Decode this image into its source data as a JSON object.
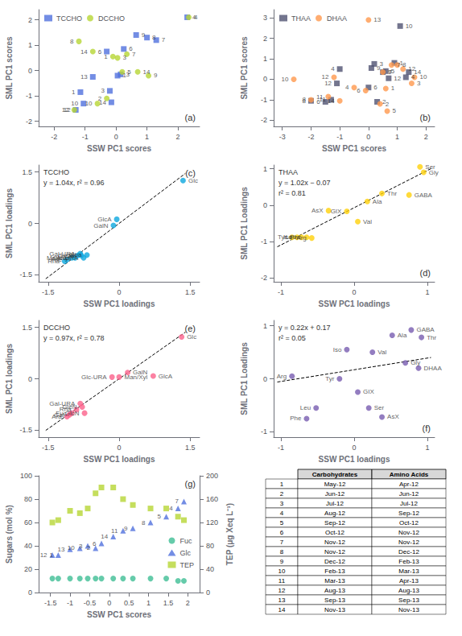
{
  "chart_data": [
    {
      "type": "scatter",
      "title": "(a)",
      "xlabel": "SSW PC1 scores",
      "ylabel": "SML PC1 scores",
      "xlim": [
        -2.5,
        2.7
      ],
      "ylim": [
        -2.2,
        2.4
      ],
      "xticks": [
        -2,
        -1,
        0,
        1,
        2
      ],
      "yticks": [
        -2,
        -1,
        0,
        1,
        2
      ],
      "grid": false,
      "legend": "upper left",
      "series": [
        {
          "name": "TCCHO",
          "marker": "square",
          "x": [
            -1.3,
            -1.15,
            -1.05,
            -0.75,
            -0.3,
            -0.2,
            -0.15,
            0.05,
            0.15,
            0.25,
            0.65,
            1.0,
            1.3,
            2.3
          ],
          "y": [
            -1.55,
            -0.85,
            -1.3,
            -0.25,
            0.75,
            -0.8,
            -1.25,
            -0.2,
            -0.15,
            0.85,
            1.4,
            1.3,
            1.2,
            2.1
          ],
          "labels": [
            "12",
            "1",
            "10",
            "13",
            "6",
            "3",
            "14",
            "1",
            "3",
            "6",
            "9",
            "8",
            "7",
            "4"
          ]
        },
        {
          "name": "DCCHO",
          "marker": "circle",
          "x": [
            -1.35,
            -1.2,
            -0.75,
            -0.6,
            -0.3,
            -0.1,
            0.05,
            0.2,
            0.35,
            0.7,
            1.05,
            2.35
          ],
          "y": [
            -1.55,
            1.15,
            0.75,
            -1.3,
            -1.1,
            0.55,
            0.5,
            -0.05,
            0.65,
            -0.05,
            -0.2,
            2.1
          ],
          "labels": [
            "12",
            "8",
            "14",
            "10",
            "2",
            "1",
            "3",
            "5",
            "7",
            "14",
            "9",
            "4"
          ]
        }
      ]
    },
    {
      "type": "scatter",
      "title": "(b)",
      "xlabel": "SSW PC1 scores",
      "ylabel": "SML PC1 scores",
      "xlim": [
        -3.3,
        2.3
      ],
      "ylim": [
        -2.3,
        3.4
      ],
      "xticks": [
        -3,
        -2,
        -1,
        0,
        1,
        2
      ],
      "yticks": [
        -2,
        -1,
        0,
        1,
        2,
        3
      ],
      "grid": false,
      "legend": "upper left",
      "series": [
        {
          "name": "THAA",
          "marker": "square",
          "x": [
            -2.0,
            -1.5,
            -1.3,
            -1.1,
            -1.0,
            0.0,
            0.1,
            0.2,
            0.3,
            0.5,
            0.6,
            0.7,
            0.9,
            1.1,
            1.3,
            1.4
          ],
          "y": [
            -1.05,
            -1.1,
            -1.0,
            -0.2,
            0.5,
            -0.4,
            0.55,
            0.75,
            -1.1,
            0.35,
            0.4,
            0.05,
            0.8,
            2.6,
            0.1,
            0.35
          ],
          "labels": [
            "8",
            "6",
            "11",
            "12",
            "4",
            "6",
            "9",
            "3",
            "2",
            "7",
            "5",
            "12",
            "1",
            "10",
            "4",
            "14"
          ]
        },
        {
          "name": "DHAA",
          "marker": "circle",
          "x": [
            -2.6,
            -2.0,
            -1.4,
            -1.2,
            -1.0,
            -0.5,
            -0.1,
            0.0,
            0.4,
            0.5,
            0.6,
            0.65,
            0.8,
            1.0,
            1.2,
            1.5,
            1.6
          ],
          "y": [
            0.0,
            -1.0,
            -0.85,
            0.1,
            -1.05,
            -0.4,
            -0.55,
            2.9,
            -1.2,
            0.35,
            -0.45,
            -1.55,
            0.7,
            0.7,
            0.5,
            -0.2,
            0.1
          ],
          "labels": [
            "10",
            "8",
            "11",
            "12",
            "14",
            "4",
            "6",
            "13",
            "2",
            "9",
            "1",
            "5",
            "7",
            "8",
            "12",
            "3",
            "10"
          ]
        }
      ]
    },
    {
      "type": "scatter",
      "title": "(c)",
      "xlabel": "SSW PC1 loadings",
      "ylabel": "SML PC1 loadings",
      "xlim": [
        -1.7,
        1.7
      ],
      "ylim": [
        -1.7,
        1.7
      ],
      "xticks": [
        -1.5,
        0,
        1.5
      ],
      "yticks": [
        -1.5,
        0,
        1.5
      ],
      "grid": false,
      "annotations": [
        "TCCHO",
        "y = 1.04x, r² = 0.96"
      ],
      "series": [
        {
          "marker": "circle",
          "x": [
            -1.15,
            -1.1,
            -1.0,
            -0.93,
            -0.87,
            -0.82,
            -0.8,
            -0.75,
            -0.68,
            -0.12,
            -0.05,
            1.35
          ],
          "y": [
            -1.1,
            -1.05,
            -1.0,
            -1.0,
            -0.93,
            -0.88,
            -0.93,
            -1.0,
            -0.92,
            -0.06,
            0.12,
            1.25
          ],
          "labels": [
            "Rha",
            "Fuc",
            "Ara",
            "Man/Xyl",
            "GleN",
            "Gal-URA",
            "Gal",
            "Glc-URA",
            "Rha",
            "GalN",
            "GlcA",
            "Glc"
          ]
        },
        {
          "type": "line",
          "line_style": "dashed",
          "color": "#000000",
          "x": [
            -1.55,
            1.4
          ],
          "y": [
            -1.612,
            1.456
          ]
        }
      ]
    },
    {
      "type": "scatter",
      "title": "(d)",
      "xlabel": "SSW PC1 loadings",
      "ylabel": "SML PC1 Loadings",
      "xlim": [
        -1.1,
        1.1
      ],
      "ylim": [
        -2.1,
        1.1
      ],
      "xticks": [
        -1,
        0,
        1
      ],
      "yticks": [
        -2,
        -1,
        0,
        1
      ],
      "grid": false,
      "annotations": [
        "THAA",
        "y = 1.02x − 0.07",
        "r² = 0.81"
      ],
      "series": [
        {
          "marker": "circle",
          "x": [
            -0.85,
            -0.78,
            -0.72,
            -0.65,
            -0.58,
            -0.35,
            -0.1,
            0.05,
            0.18,
            0.38,
            0.75,
            0.95,
            0.9
          ],
          "y": [
            -0.88,
            -0.88,
            -0.88,
            -0.88,
            -0.9,
            -0.15,
            -0.17,
            -0.45,
            0.1,
            0.32,
            0.28,
            0.9,
            1.05
          ],
          "labels": [
            "Tyr",
            "Iso",
            "Leu",
            "Phe",
            "Arg",
            "AsX",
            "GIX",
            "Val",
            "Ala",
            "Thr",
            "GABA",
            "Gly",
            "Ser"
          ]
        },
        {
          "type": "line",
          "line_style": "dashed",
          "color": "#000000",
          "x": [
            -1.05,
            1.05
          ],
          "y": [
            -1.141,
            1.001
          ]
        }
      ]
    },
    {
      "type": "scatter",
      "title": "(e)",
      "xlabel": "SSW PC1 loadings",
      "ylabel": "SML PC1 loadings",
      "xlim": [
        -1.7,
        1.7
      ],
      "ylim": [
        -1.7,
        1.7
      ],
      "xticks": [
        -1.5,
        0,
        1.5
      ],
      "yticks": [
        -1.5,
        0,
        1.5
      ],
      "grid": false,
      "annotations": [
        "DCCHO",
        "y = 0.97x, r² = 0.78"
      ],
      "series": [
        {
          "marker": "circle",
          "x": [
            -1.1,
            -1.05,
            -1.0,
            -0.9,
            -0.82,
            -0.78,
            -0.73,
            -0.15,
            0.0,
            0.18,
            0.72,
            1.32
          ],
          "y": [
            -1.1,
            -1.05,
            -1.0,
            -0.9,
            -0.72,
            -0.82,
            -1.0,
            0.05,
            0.05,
            0.18,
            0.08,
            1.22
          ],
          "labels": [
            "Ara",
            "Gal",
            "Fuc",
            "Rha",
            "Gal-URA",
            "GleN",
            "GlcN",
            "Glc-URA",
            "Man/Xyl",
            "GalN",
            "GlcA",
            "Glc"
          ]
        },
        {
          "type": "line",
          "line_style": "dashed",
          "color": "#000000",
          "x": [
            -1.55,
            1.4
          ],
          "y": [
            -1.5035,
            1.358
          ]
        }
      ]
    },
    {
      "type": "scatter",
      "title": "(f)",
      "xlabel": "SSW PC1 loadings",
      "ylabel": "SML PC1 Loadings",
      "xlim": [
        -1.1,
        1.1
      ],
      "ylim": [
        -1.1,
        1.1
      ],
      "xticks": [
        -1,
        0,
        1
      ],
      "yticks": [
        -1,
        0,
        1
      ],
      "grid": false,
      "annotations": [
        "y = 0.22x + 0.17",
        "r² = 0.05"
      ],
      "series": [
        {
          "marker": "circle",
          "x": [
            -0.85,
            -0.65,
            -0.52,
            -0.2,
            -0.1,
            0.05,
            0.2,
            0.25,
            0.38,
            0.52,
            0.7,
            0.88,
            0.78,
            0.92
          ],
          "y": [
            0.05,
            -0.75,
            -0.55,
            0.0,
            0.55,
            -0.25,
            -0.55,
            0.5,
            -0.72,
            0.82,
            0.3,
            0.2,
            0.92,
            0.78
          ],
          "labels": [
            "Arg",
            "Phe",
            "Leu",
            "Tyr",
            "Iso",
            "GIX",
            "Ser",
            "Val",
            "AsX",
            "Ala",
            "Gly",
            "DHAA",
            "GABA",
            "Thr"
          ]
        },
        {
          "type": "line",
          "line_style": "dashed",
          "color": "#000000",
          "x": [
            -1.05,
            1.05
          ],
          "y": [
            -0.061,
            0.401
          ]
        }
      ]
    },
    {
      "type": "scatter",
      "title": "(g)",
      "xlabel": "SSW PC1 scores",
      "ylabel": "Sugars (mol %)",
      "y2label": "TEP (μg Xeq L⁻¹)",
      "xlim": [
        -1.8,
        2.3
      ],
      "ylim": [
        0,
        100
      ],
      "y2lim": [
        0,
        200
      ],
      "xticks": [
        -1.5,
        -1,
        -0.5,
        0,
        0.5,
        1,
        1.5,
        2
      ],
      "yticks": [
        0,
        20,
        40,
        60,
        80,
        100
      ],
      "y2ticks": [
        0,
        40,
        80,
        120,
        160,
        200
      ],
      "grid": false,
      "legend": "lower right",
      "series": [
        {
          "name": "Fuc",
          "marker": "circle",
          "x": [
            -1.45,
            -1.3,
            -1.0,
            -0.75,
            -0.55,
            -0.35,
            -0.2,
            0.1,
            0.35,
            0.6,
            1.05,
            1.45,
            1.75,
            1.9
          ],
          "y": [
            12,
            12,
            12,
            12,
            12,
            12,
            12,
            12,
            12,
            12,
            12,
            12,
            10,
            10
          ]
        },
        {
          "name": "Glc",
          "marker": "triangle",
          "x": [
            -1.45,
            -1.3,
            -1.0,
            -0.75,
            -0.55,
            -0.35,
            -0.2,
            0.1,
            0.35,
            0.6,
            1.05,
            1.45,
            1.75,
            1.9
          ],
          "y": [
            32,
            32,
            37,
            38,
            40,
            38,
            42,
            48,
            53,
            55,
            60,
            65,
            72,
            78
          ],
          "labels": [
            "12",
            "1",
            "13",
            "10",
            "3",
            "2",
            "6",
            "14",
            "11",
            "9",
            "8",
            "5",
            "4",
            "7"
          ]
        },
        {
          "name": "TEP",
          "marker": "square",
          "axis": "y2",
          "x": [
            -1.45,
            -1.3,
            -1.0,
            -0.75,
            -0.55,
            -0.35,
            -0.2,
            0.1,
            0.35,
            0.6,
            1.05,
            1.45,
            1.75,
            1.9
          ],
          "y": [
            120,
            124,
            140,
            136,
            144,
            170,
            180,
            180,
            160,
            150,
            144,
            144,
            130,
            124
          ]
        }
      ]
    },
    {
      "type": "table",
      "columns": [
        "Carbohydrates",
        "Amino Acids"
      ],
      "rows": [
        [
          "1",
          "May-12",
          "Apr-12"
        ],
        [
          "2",
          "Jun-12",
          "Jun-12"
        ],
        [
          "3",
          "Jul-12",
          "Jul-12"
        ],
        [
          "4",
          "Aug-12",
          "Sep-12"
        ],
        [
          "5",
          "Sep-12",
          "Oct-12"
        ],
        [
          "6",
          "Oct-12",
          "Nov-12"
        ],
        [
          "7",
          "Nov-12",
          "Nov-12"
        ],
        [
          "8",
          "Nov-12",
          "Dec-12"
        ],
        [
          "9",
          "Dec-12",
          "Feb-13"
        ],
        [
          "10",
          "Feb-13",
          "Mar-13"
        ],
        [
          "11",
          "Mar-13",
          "Apr-13"
        ],
        [
          "12",
          "Aug-13",
          "Aug-13"
        ],
        [
          "13",
          "Sep-13",
          "Sep-13"
        ],
        [
          "14",
          "Nov-13",
          "Nov-13"
        ]
      ]
    }
  ]
}
